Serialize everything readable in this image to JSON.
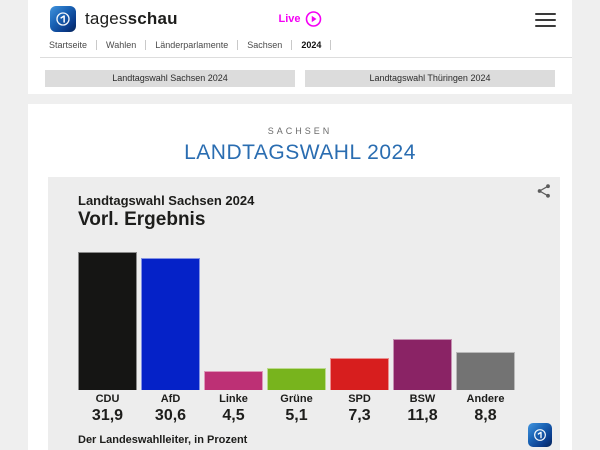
{
  "header": {
    "brand": {
      "name_regular": "tages",
      "name_bold": "schau"
    },
    "live_label": "Live",
    "breadcrumb": [
      "Startseite",
      "Wahlen",
      "Länderparlamente",
      "Sachsen",
      "2024"
    ]
  },
  "tabs": [
    {
      "label": "Landtagswahl Sachsen 2024"
    },
    {
      "label": "Landtagswahl Thüringen 2024"
    }
  ],
  "page": {
    "kicker": "SACHSEN",
    "title": "LANDTAGSWAHL 2024"
  },
  "chart_card": {
    "title": "Landtagswahl Sachsen 2024",
    "subtitle": "Vorl. Ergebnis",
    "source": "Der Landeswahlleiter, in Prozent"
  },
  "chart_data": {
    "type": "bar",
    "title": "Landtagswahl Sachsen 2024 — Vorl. Ergebnis",
    "unit": "Prozent",
    "categories": [
      "CDU",
      "AfD",
      "Linke",
      "Grüne",
      "SPD",
      "BSW",
      "Andere"
    ],
    "values": [
      31.9,
      30.6,
      4.5,
      5.1,
      7.3,
      11.8,
      8.8
    ],
    "value_labels": [
      "31,9",
      "30,6",
      "4,5",
      "5,1",
      "7,3",
      "11,8",
      "8,8"
    ],
    "bar_colors": [
      "#151514",
      "#0522c8",
      "#bd3075",
      "#78b41d",
      "#d71e1e",
      "#8a2365",
      "#737373"
    ],
    "source": "Der Landeswahlleiter, in Prozent",
    "ylim": [
      0,
      32
    ],
    "grid": false,
    "legend": false
  },
  "colors": {
    "title_blue": "#2a6db1",
    "live_magenta": "#f400f4",
    "brand_blue": "#0a3c8c",
    "card_bg": "#ededed"
  }
}
